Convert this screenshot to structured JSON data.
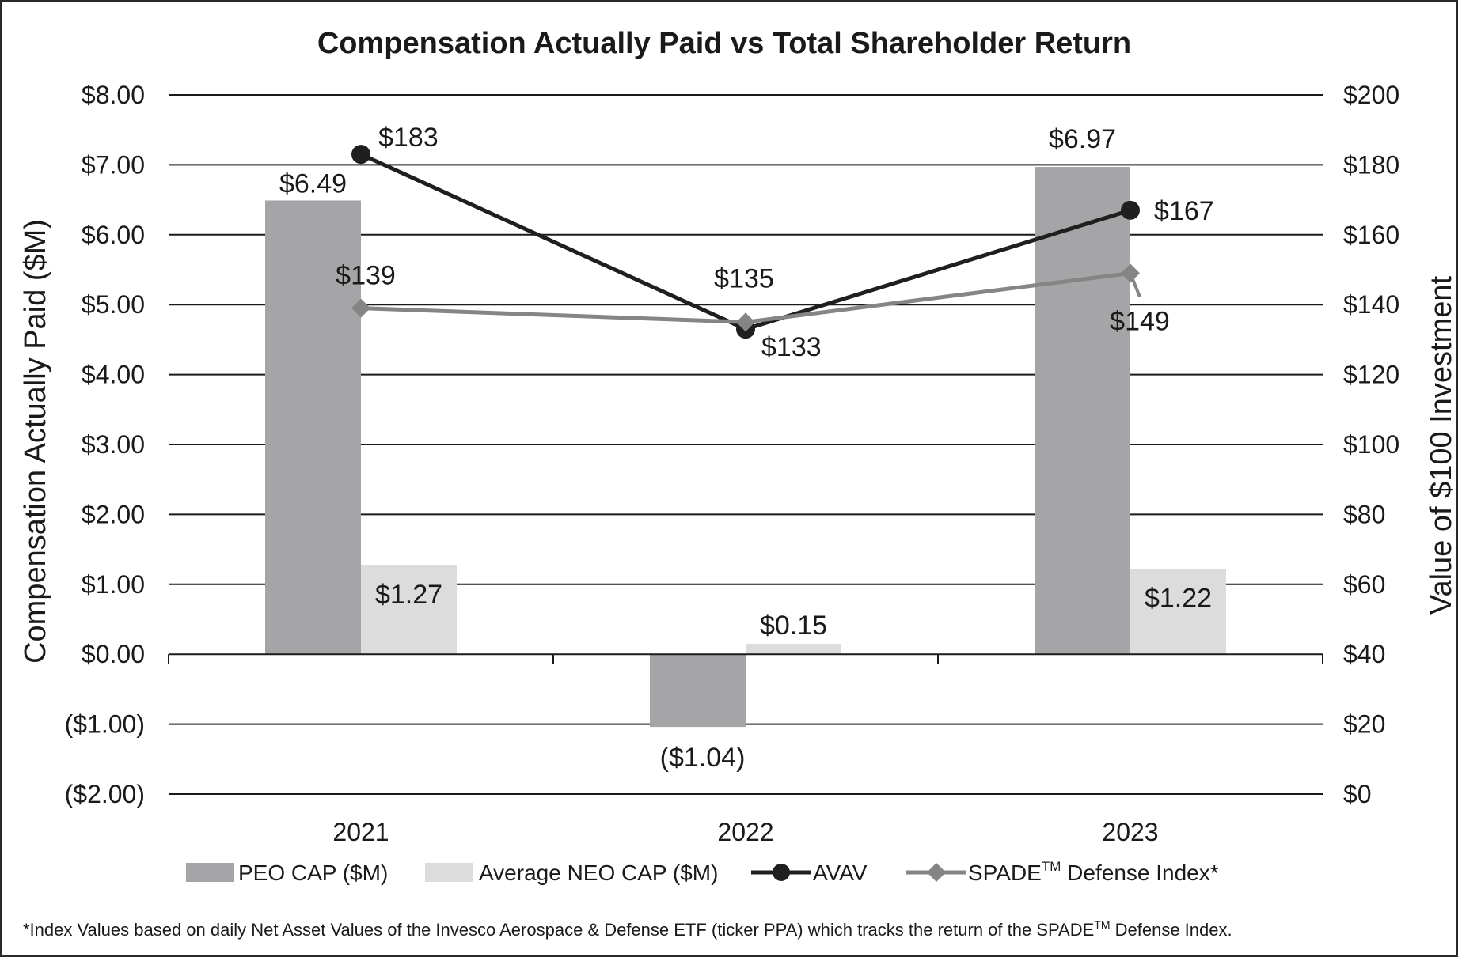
{
  "chart_data": {
    "type": "bar",
    "title": "Compensation Actually Paid vs Total Shareholder Return",
    "categories": [
      "2021",
      "2022",
      "2023"
    ],
    "ylabel_left": "Compensation Actually Paid ($M)",
    "ylabel_right": "Value of $100 Investment",
    "ylim_left": [
      -2,
      8
    ],
    "ylim_right": [
      0,
      200
    ],
    "yticks_left": [
      {
        "value": 8,
        "label": "$8.00"
      },
      {
        "value": 7,
        "label": "$7.00"
      },
      {
        "value": 6,
        "label": "$6.00"
      },
      {
        "value": 5,
        "label": "$5.00"
      },
      {
        "value": 4,
        "label": "$4.00"
      },
      {
        "value": 3,
        "label": "$3.00"
      },
      {
        "value": 2,
        "label": "$2.00"
      },
      {
        "value": 1,
        "label": "$1.00"
      },
      {
        "value": 0,
        "label": "$0.00"
      },
      {
        "value": -1,
        "label": "($1.00)"
      },
      {
        "value": -2,
        "label": "($2.00)"
      }
    ],
    "yticks_right": [
      {
        "value": 200,
        "label": "$200"
      },
      {
        "value": 180,
        "label": "$180"
      },
      {
        "value": 160,
        "label": "$160"
      },
      {
        "value": 140,
        "label": "$140"
      },
      {
        "value": 120,
        "label": "$120"
      },
      {
        "value": 100,
        "label": "$100"
      },
      {
        "value": 80,
        "label": "$80"
      },
      {
        "value": 60,
        "label": "$60"
      },
      {
        "value": 40,
        "label": "$40"
      },
      {
        "value": 20,
        "label": "$20"
      },
      {
        "value": 0,
        "label": "$0"
      }
    ],
    "grid": true,
    "bar_series": [
      {
        "name": "PEO CAP ($M)",
        "color": "#a5a5a7",
        "values": [
          6.49,
          -1.04,
          6.97
        ],
        "labels": [
          "$6.49",
          "($1.04)",
          "$6.97"
        ]
      },
      {
        "name": "Average NEO CAP ($M)",
        "color": "#dcdcdd",
        "values": [
          1.27,
          0.15,
          1.22
        ],
        "labels": [
          "$1.27",
          "$0.15",
          "$1.22"
        ]
      }
    ],
    "line_series": [
      {
        "name": "AVAV",
        "color": "#1f1f1f",
        "marker": "circle",
        "axis": "right",
        "values": [
          183,
          133,
          167
        ],
        "labels": [
          "$183",
          "$133",
          "$167"
        ]
      },
      {
        "name": "SPADE™ Defense Index*",
        "color": "#858585",
        "marker": "diamond",
        "axis": "right",
        "values": [
          139,
          135,
          149
        ],
        "labels": [
          "$139",
          "$135",
          "$149"
        ]
      }
    ],
    "legend": {
      "placement": "bottom",
      "items": [
        {
          "label": "PEO CAP ($M)",
          "kind": "bar",
          "color": "#a5a5a7"
        },
        {
          "label": "Average NEO CAP ($M)",
          "kind": "bar",
          "color": "#dcdcdd"
        },
        {
          "label": "AVAV",
          "kind": "line-circle",
          "color": "#1f1f1f"
        },
        {
          "label": "SPADE",
          "sup": "TM",
          "label_after": " Defense Index*",
          "kind": "line-diamond",
          "color": "#858585"
        }
      ]
    },
    "footnote": {
      "text_before": "*Index Values based on daily Net Asset Values of the Invesco Aerospace & Defense ETF (ticker PPA) which tracks the return of the SPADE",
      "sup": "TM",
      "text_after": " Defense Index."
    }
  }
}
